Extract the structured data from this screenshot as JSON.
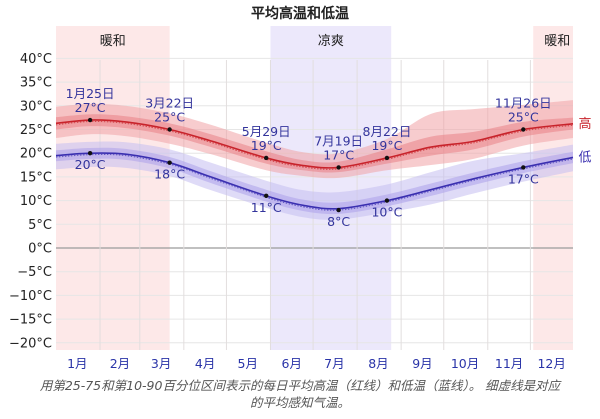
{
  "chart_data": {
    "type": "line",
    "title": "平均高温和低温",
    "xlabel": "",
    "ylabel": "",
    "ylim": [
      -22,
      42
    ],
    "y_ticks": [
      40,
      35,
      30,
      25,
      20,
      15,
      10,
      5,
      0,
      -5,
      -10,
      -15,
      -20
    ],
    "y_tick_labels": [
      "40°C",
      "35°C",
      "30°C",
      "25°C",
      "20°C",
      "15°C",
      "10°C",
      "5°C",
      "0°C",
      "−5°C",
      "−10°C",
      "−15°C",
      "−20°C"
    ],
    "categories": [
      "1月",
      "2月",
      "3月",
      "4月",
      "5月",
      "6月",
      "7月",
      "8月",
      "9月",
      "10月",
      "11月",
      "12月"
    ],
    "grid": true,
    "seasons": [
      {
        "label": "暖和",
        "start_day": 1,
        "end_day": 81,
        "color": "#fde8e8"
      },
      {
        "label": "凉爽",
        "start_day": 152,
        "end_day": 237,
        "color": "#ece8fb"
      },
      {
        "label": "暖和",
        "start_day": 337,
        "end_day": 365,
        "color": "#fde8e8"
      }
    ],
    "series": [
      {
        "name": "高",
        "color": "#c8232b",
        "day": [
          1,
          25,
          50,
          81,
          110,
          149,
          175,
          200,
          234,
          265,
          295,
          330,
          365
        ],
        "values": [
          26.3,
          27,
          26.6,
          25,
          22.6,
          19,
          17.4,
          17,
          19,
          21.3,
          22.5,
          25,
          26.2
        ],
        "p25": [
          25,
          25.7,
          25.3,
          23.7,
          21.3,
          17.8,
          16.4,
          16,
          17.8,
          19.5,
          20.8,
          23.5,
          25
        ],
        "p75": [
          27.6,
          28.2,
          27.8,
          26.3,
          24,
          20.4,
          18.5,
          18.2,
          20.8,
          23.5,
          24.5,
          26.6,
          27.5
        ],
        "p10": [
          23.2,
          24,
          23.6,
          22,
          19.8,
          16.4,
          15.2,
          14.8,
          16.4,
          17.5,
          18.8,
          21.6,
          23.2
        ],
        "p90": [
          29.8,
          30.4,
          30,
          28.4,
          26,
          22.2,
          20.2,
          20,
          23,
          28.3,
          29.3,
          30.2,
          31.2
        ]
      },
      {
        "name": "低",
        "color": "#3a2fb0",
        "day": [
          1,
          25,
          50,
          81,
          110,
          149,
          175,
          200,
          234,
          265,
          295,
          330,
          365
        ],
        "values": [
          19.5,
          20,
          19.8,
          18,
          15,
          11,
          9,
          8.3,
          10,
          12.3,
          14.6,
          17,
          19.1
        ],
        "p25": [
          18.3,
          18.8,
          18.6,
          16.8,
          13.7,
          9.8,
          7.8,
          7.2,
          8.8,
          11,
          13.3,
          15.8,
          17.9
        ],
        "p75": [
          20.6,
          21.1,
          20.9,
          19.2,
          16.2,
          12.3,
          10.2,
          9.6,
          11.3,
          13.6,
          15.9,
          18.3,
          20.3
        ],
        "p10": [
          16.6,
          17.1,
          16.9,
          15.2,
          12.2,
          8.5,
          6.5,
          6,
          7.5,
          9.2,
          11.5,
          14,
          16.2
        ],
        "p90": [
          22,
          22.4,
          22.3,
          20.8,
          18,
          14.2,
          12.2,
          11.8,
          13.4,
          16,
          18.4,
          20,
          21.8
        ]
      }
    ],
    "annotations": [
      {
        "series": "高",
        "day": 25,
        "date": "1月25日",
        "value": 27,
        "label": "27°C"
      },
      {
        "series": "高",
        "day": 81,
        "date": "3月22日",
        "value": 25,
        "label": "25°C"
      },
      {
        "series": "高",
        "day": 149,
        "date": "5月29日",
        "value": 19,
        "label": "19°C"
      },
      {
        "series": "高",
        "day": 200,
        "date": "7月19日",
        "value": 17,
        "label": "17°C"
      },
      {
        "series": "高",
        "day": 234,
        "date": "8月22日",
        "value": 19,
        "label": "19°C"
      },
      {
        "series": "高",
        "day": 330,
        "date": "11月26日",
        "value": 25,
        "label": "25°C"
      },
      {
        "series": "低",
        "day": 25,
        "value": 20,
        "label": "20°C"
      },
      {
        "series": "低",
        "day": 81,
        "value": 18,
        "label": "18°C"
      },
      {
        "series": "低",
        "day": 149,
        "value": 11,
        "label": "11°C"
      },
      {
        "series": "低",
        "day": 200,
        "value": 8,
        "label": "8°C"
      },
      {
        "series": "低",
        "day": 234,
        "value": 10,
        "label": "10°C"
      },
      {
        "series": "低",
        "day": 330,
        "value": 17,
        "label": "17°C"
      }
    ],
    "legend": {
      "position": "right-inline",
      "entries": [
        "高",
        "低"
      ]
    }
  },
  "caption": {
    "line1": "用第25-75和第10-90百分位区间表示的每日平均高温（红线）和低温（蓝线）。 细虚线是对应",
    "line2": "的平均感知气温。"
  }
}
